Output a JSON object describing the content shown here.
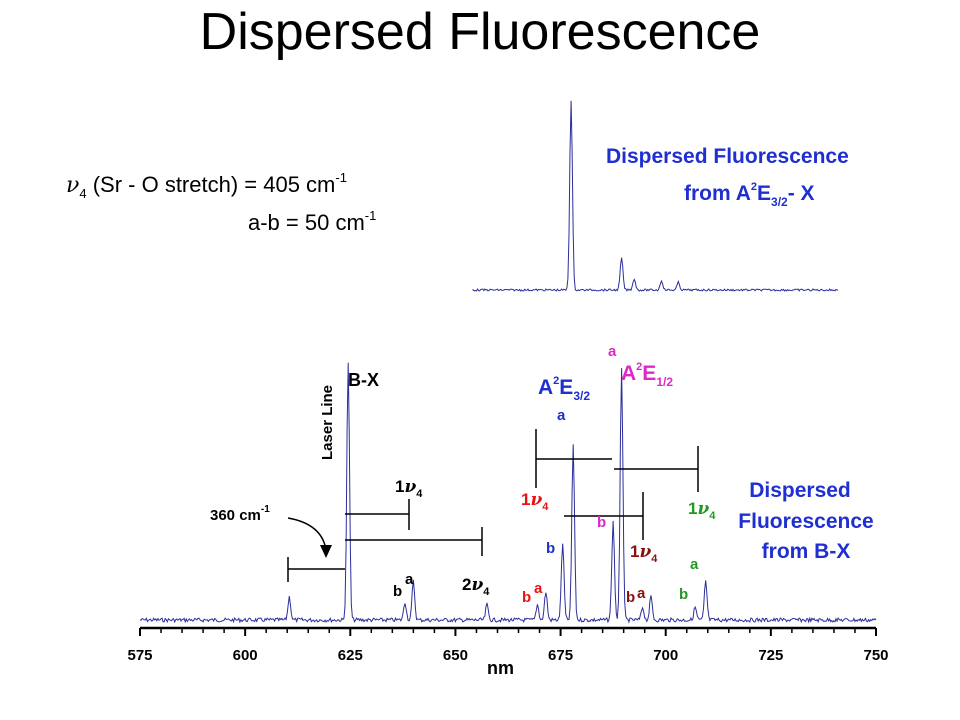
{
  "slide": {
    "title": "Dispersed Fluorescence"
  },
  "colors": {
    "trace": "#2b2f9a",
    "blue": "#1f2fd0",
    "red": "#e81414",
    "magenta": "#e028c8",
    "darkred": "#8a1010",
    "green": "#229a22",
    "black": "#000000"
  },
  "annotations": {
    "formula_nu": "ν",
    "formula_sub": "4",
    "formula_rest": " (Sr - O stretch) = 405 cm",
    "formula_sup": "-1",
    "ab_text": "a-b = 50 cm",
    "ab_sup": "-1",
    "top_title_1": "Dispersed Fluorescence",
    "top_title_2_a": "from A",
    "top_title_2_sup": "2",
    "top_title_2_e": "E",
    "top_title_2_sub": "3/2",
    "top_title_2_x": "- X",
    "bottom_title_1": "Dispersed",
    "bottom_title_2": "Fluorescence",
    "bottom_title_3": "from B-X",
    "laser_line": "Laser Line",
    "bx": "B-X",
    "cm360": "360 cm",
    "cm360_sup": "-1",
    "a2e32_a": "A",
    "a2e32_sup": "2",
    "a2e32_e": "E",
    "a2e32_sub": "3/2",
    "a2e12_a": "A",
    "a2e12_sup": "2",
    "a2e12_e": "E",
    "a2e12_sub": "1/2",
    "nu1_one": "1",
    "nu1_nu": "ν",
    "nu1_sub": "4",
    "nu2_two": "2",
    "label_a": "a",
    "label_b": "b"
  },
  "chart_data": [
    {
      "type": "line",
      "title": "Dispersed Fluorescence from A²E3/2 - X",
      "xlabel": "",
      "ylabel": "",
      "peaks": [
        {
          "x": 677.5,
          "y": 1.0
        },
        {
          "x": 689.5,
          "y": 0.17
        },
        {
          "x": 692.5,
          "y": 0.06
        },
        {
          "x": 699.0,
          "y": 0.05
        },
        {
          "x": 703.0,
          "y": 0.04
        }
      ],
      "ylim": [
        0,
        1.05
      ]
    },
    {
      "type": "line",
      "title": "Dispersed Fluorescence from B-X",
      "xlabel": "nm",
      "ylabel": "",
      "x_ticks": [
        575,
        600,
        625,
        650,
        675,
        700,
        725,
        750
      ],
      "xlim": [
        575,
        750
      ],
      "ylim": [
        0,
        1.05
      ],
      "peaks": [
        {
          "x": 610.5,
          "y": 0.09
        },
        {
          "x": 624.5,
          "y": 1.0
        },
        {
          "x": 638.0,
          "y": 0.07
        },
        {
          "x": 640.0,
          "y": 0.15
        },
        {
          "x": 657.5,
          "y": 0.06
        },
        {
          "x": 669.5,
          "y": 0.06
        },
        {
          "x": 671.5,
          "y": 0.11
        },
        {
          "x": 675.5,
          "y": 0.3
        },
        {
          "x": 678.0,
          "y": 0.68
        },
        {
          "x": 687.5,
          "y": 0.38
        },
        {
          "x": 689.5,
          "y": 0.98
        },
        {
          "x": 694.5,
          "y": 0.05
        },
        {
          "x": 696.5,
          "y": 0.09
        },
        {
          "x": 707.0,
          "y": 0.05
        },
        {
          "x": 709.5,
          "y": 0.15
        }
      ]
    }
  ]
}
